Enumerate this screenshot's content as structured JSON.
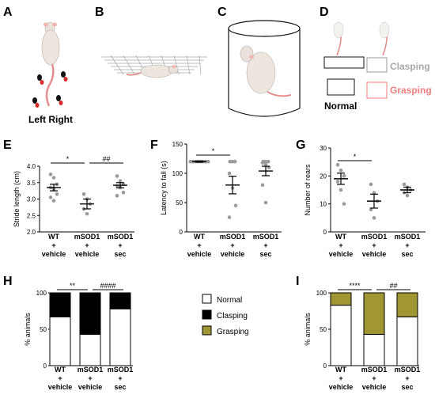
{
  "panels": {
    "A": {
      "letter": "A",
      "foot_labels": "Left Right"
    },
    "B": {
      "letter": "B"
    },
    "C": {
      "letter": "C"
    },
    "D": {
      "letter": "D",
      "normal_label": "Normal",
      "clasping_label": "Clasping",
      "grasping_label": "Grasping"
    }
  },
  "colors": {
    "clasping": "#000000",
    "grasping": "#a09633",
    "normal": "#ffffff",
    "points": "#9b9b9b",
    "legend_clasping_text": "#a8a8a8",
    "legend_grasping_text": "#f07e7e"
  },
  "legend": {
    "items": [
      {
        "label": "Normal",
        "color": "#ffffff"
      },
      {
        "label": "Clasping",
        "color": "#000000"
      },
      {
        "label": "Grasping",
        "color": "#a09633"
      }
    ]
  },
  "chart_data": [
    {
      "panel": "E",
      "type": "scatter",
      "ylabel": "Stride length (cm)",
      "ylim": [
        2.0,
        4.0
      ],
      "yticks": [
        "2.0",
        "2.5",
        "3.0",
        "3.5",
        "4.0"
      ],
      "groups": [
        {
          "label": [
            "WT",
            "+",
            "vehicle"
          ],
          "points": [
            3.75,
            3.65,
            3.45,
            3.35,
            3.3,
            3.15,
            3.05,
            2.95
          ],
          "mean": 3.35,
          "sem": 0.1
        },
        {
          "label": [
            "mSOD1",
            "+",
            "vehicle"
          ],
          "points": [
            3.15,
            3.0,
            2.85,
            2.7,
            2.55
          ],
          "mean": 2.85,
          "sem": 0.15
        },
        {
          "label": [
            "mSOD1",
            "+",
            "sec"
          ],
          "points": [
            3.7,
            3.55,
            3.45,
            3.4,
            3.35,
            3.2,
            3.1
          ],
          "mean": 3.42,
          "sem": 0.08
        }
      ],
      "sig": [
        {
          "from": 0,
          "to": 1,
          "text": "*"
        },
        {
          "from": 1,
          "to": 2,
          "text": "##"
        }
      ]
    },
    {
      "panel": "F",
      "type": "scatter",
      "ylabel": "Latency to fall (s)",
      "ylim": [
        0,
        150
      ],
      "yticks": [
        "0",
        "50",
        "100",
        "150"
      ],
      "groups": [
        {
          "label": [
            "WT",
            "+",
            "vehicle"
          ],
          "points": [
            120,
            120,
            120,
            120,
            120,
            120,
            120,
            120
          ],
          "mean": 120,
          "sem": 1
        },
        {
          "label": [
            "mSOD1",
            "+",
            "vehicle"
          ],
          "points": [
            120,
            120,
            120,
            100,
            75,
            45,
            25
          ],
          "mean": 80,
          "sem": 15
        },
        {
          "label": [
            "mSOD1",
            "+",
            "sec"
          ],
          "points": [
            120,
            120,
            120,
            118,
            115,
            110,
            80,
            50
          ],
          "mean": 104,
          "sem": 8
        }
      ],
      "sig": [
        {
          "from": 0,
          "to": 1,
          "text": "*"
        }
      ]
    },
    {
      "panel": "G",
      "type": "scatter",
      "ylabel": "Number of rears",
      "ylim": [
        0,
        30
      ],
      "yticks": [
        "0",
        "10",
        "20",
        "30"
      ],
      "groups": [
        {
          "label": [
            "WT",
            "+",
            "vehicle"
          ],
          "points": [
            24,
            22,
            20,
            18,
            15,
            10
          ],
          "mean": 19,
          "sem": 2
        },
        {
          "label": [
            "mSOD1",
            "+",
            "vehicle"
          ],
          "points": [
            17,
            14,
            11,
            8,
            5
          ],
          "mean": 11,
          "sem": 2.5
        },
        {
          "label": [
            "mSOD1",
            "+",
            "sec"
          ],
          "points": [
            17,
            16,
            15,
            14,
            13
          ],
          "mean": 15,
          "sem": 1
        }
      ],
      "sig": [
        {
          "from": 0,
          "to": 1,
          "text": "*"
        }
      ]
    },
    {
      "panel": "H",
      "type": "bar",
      "ylabel": "% animals",
      "ylim": [
        0,
        100
      ],
      "yticks": [
        "0",
        "50",
        "100"
      ],
      "categories": [
        [
          "WT",
          "+",
          "vehicle"
        ],
        [
          "mSOD1",
          "+",
          "vehicle"
        ],
        [
          "mSOD1",
          "+",
          "sec"
        ]
      ],
      "series": [
        {
          "name": "Normal",
          "values": [
            67,
            43,
            78
          ]
        },
        {
          "name": "Clasping",
          "values": [
            33,
            57,
            22
          ]
        }
      ],
      "sig": [
        {
          "from": 0,
          "to": 1,
          "text": "**"
        },
        {
          "from": 1,
          "to": 2,
          "text": "####"
        }
      ]
    },
    {
      "panel": "I",
      "type": "bar",
      "ylabel": "% animals",
      "ylim": [
        0,
        100
      ],
      "yticks": [
        "0",
        "50",
        "100"
      ],
      "categories": [
        [
          "WT",
          "+",
          "vehicle"
        ],
        [
          "mSOD1",
          "+",
          "vehicle"
        ],
        [
          "mSOD1",
          "+",
          "sec"
        ]
      ],
      "series": [
        {
          "name": "Normal",
          "values": [
            83,
            43,
            67
          ]
        },
        {
          "name": "Grasping",
          "values": [
            17,
            57,
            33
          ]
        }
      ],
      "sig": [
        {
          "from": 0,
          "to": 1,
          "text": "****"
        },
        {
          "from": 1,
          "to": 2,
          "text": "##"
        }
      ]
    }
  ]
}
